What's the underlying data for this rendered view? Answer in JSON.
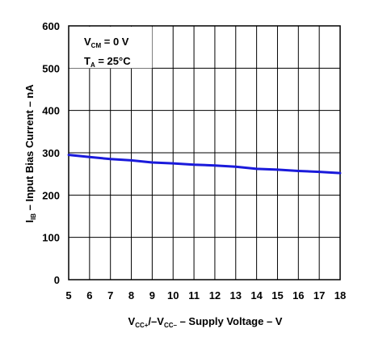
{
  "chart_data": {
    "type": "line",
    "xlabel": {
      "main_pre": "V",
      "sub1": "CC+",
      "mid": "/–V",
      "sub2": "CC–",
      "post": " – Supply Voltage – V"
    },
    "ylabel": {
      "pre": "I",
      "sub": "IB",
      "post": " – Input Bias Current – nA"
    },
    "x_ticks": [
      "5",
      "6",
      "7",
      "8",
      "9",
      "10",
      "11",
      "12",
      "13",
      "14",
      "15",
      "16",
      "17",
      "18"
    ],
    "y_ticks": [
      "0",
      "100",
      "200",
      "300",
      "400",
      "500",
      "600"
    ],
    "xlim": [
      5,
      18
    ],
    "ylim": [
      0,
      600
    ],
    "grid": true,
    "annotations": [
      {
        "pre": "V",
        "sub": "CM",
        "post": " = 0 V"
      },
      {
        "pre": "T",
        "sub": "A",
        "post": " = 25°C"
      }
    ],
    "series": [
      {
        "color": "#1a1adb",
        "x": [
          5,
          6,
          7,
          8,
          9,
          10,
          11,
          12,
          13,
          14,
          15,
          16,
          17,
          18
        ],
        "y": [
          295,
          290,
          285,
          282,
          277,
          275,
          272,
          270,
          267,
          262,
          260,
          257,
          255,
          252
        ]
      }
    ]
  }
}
